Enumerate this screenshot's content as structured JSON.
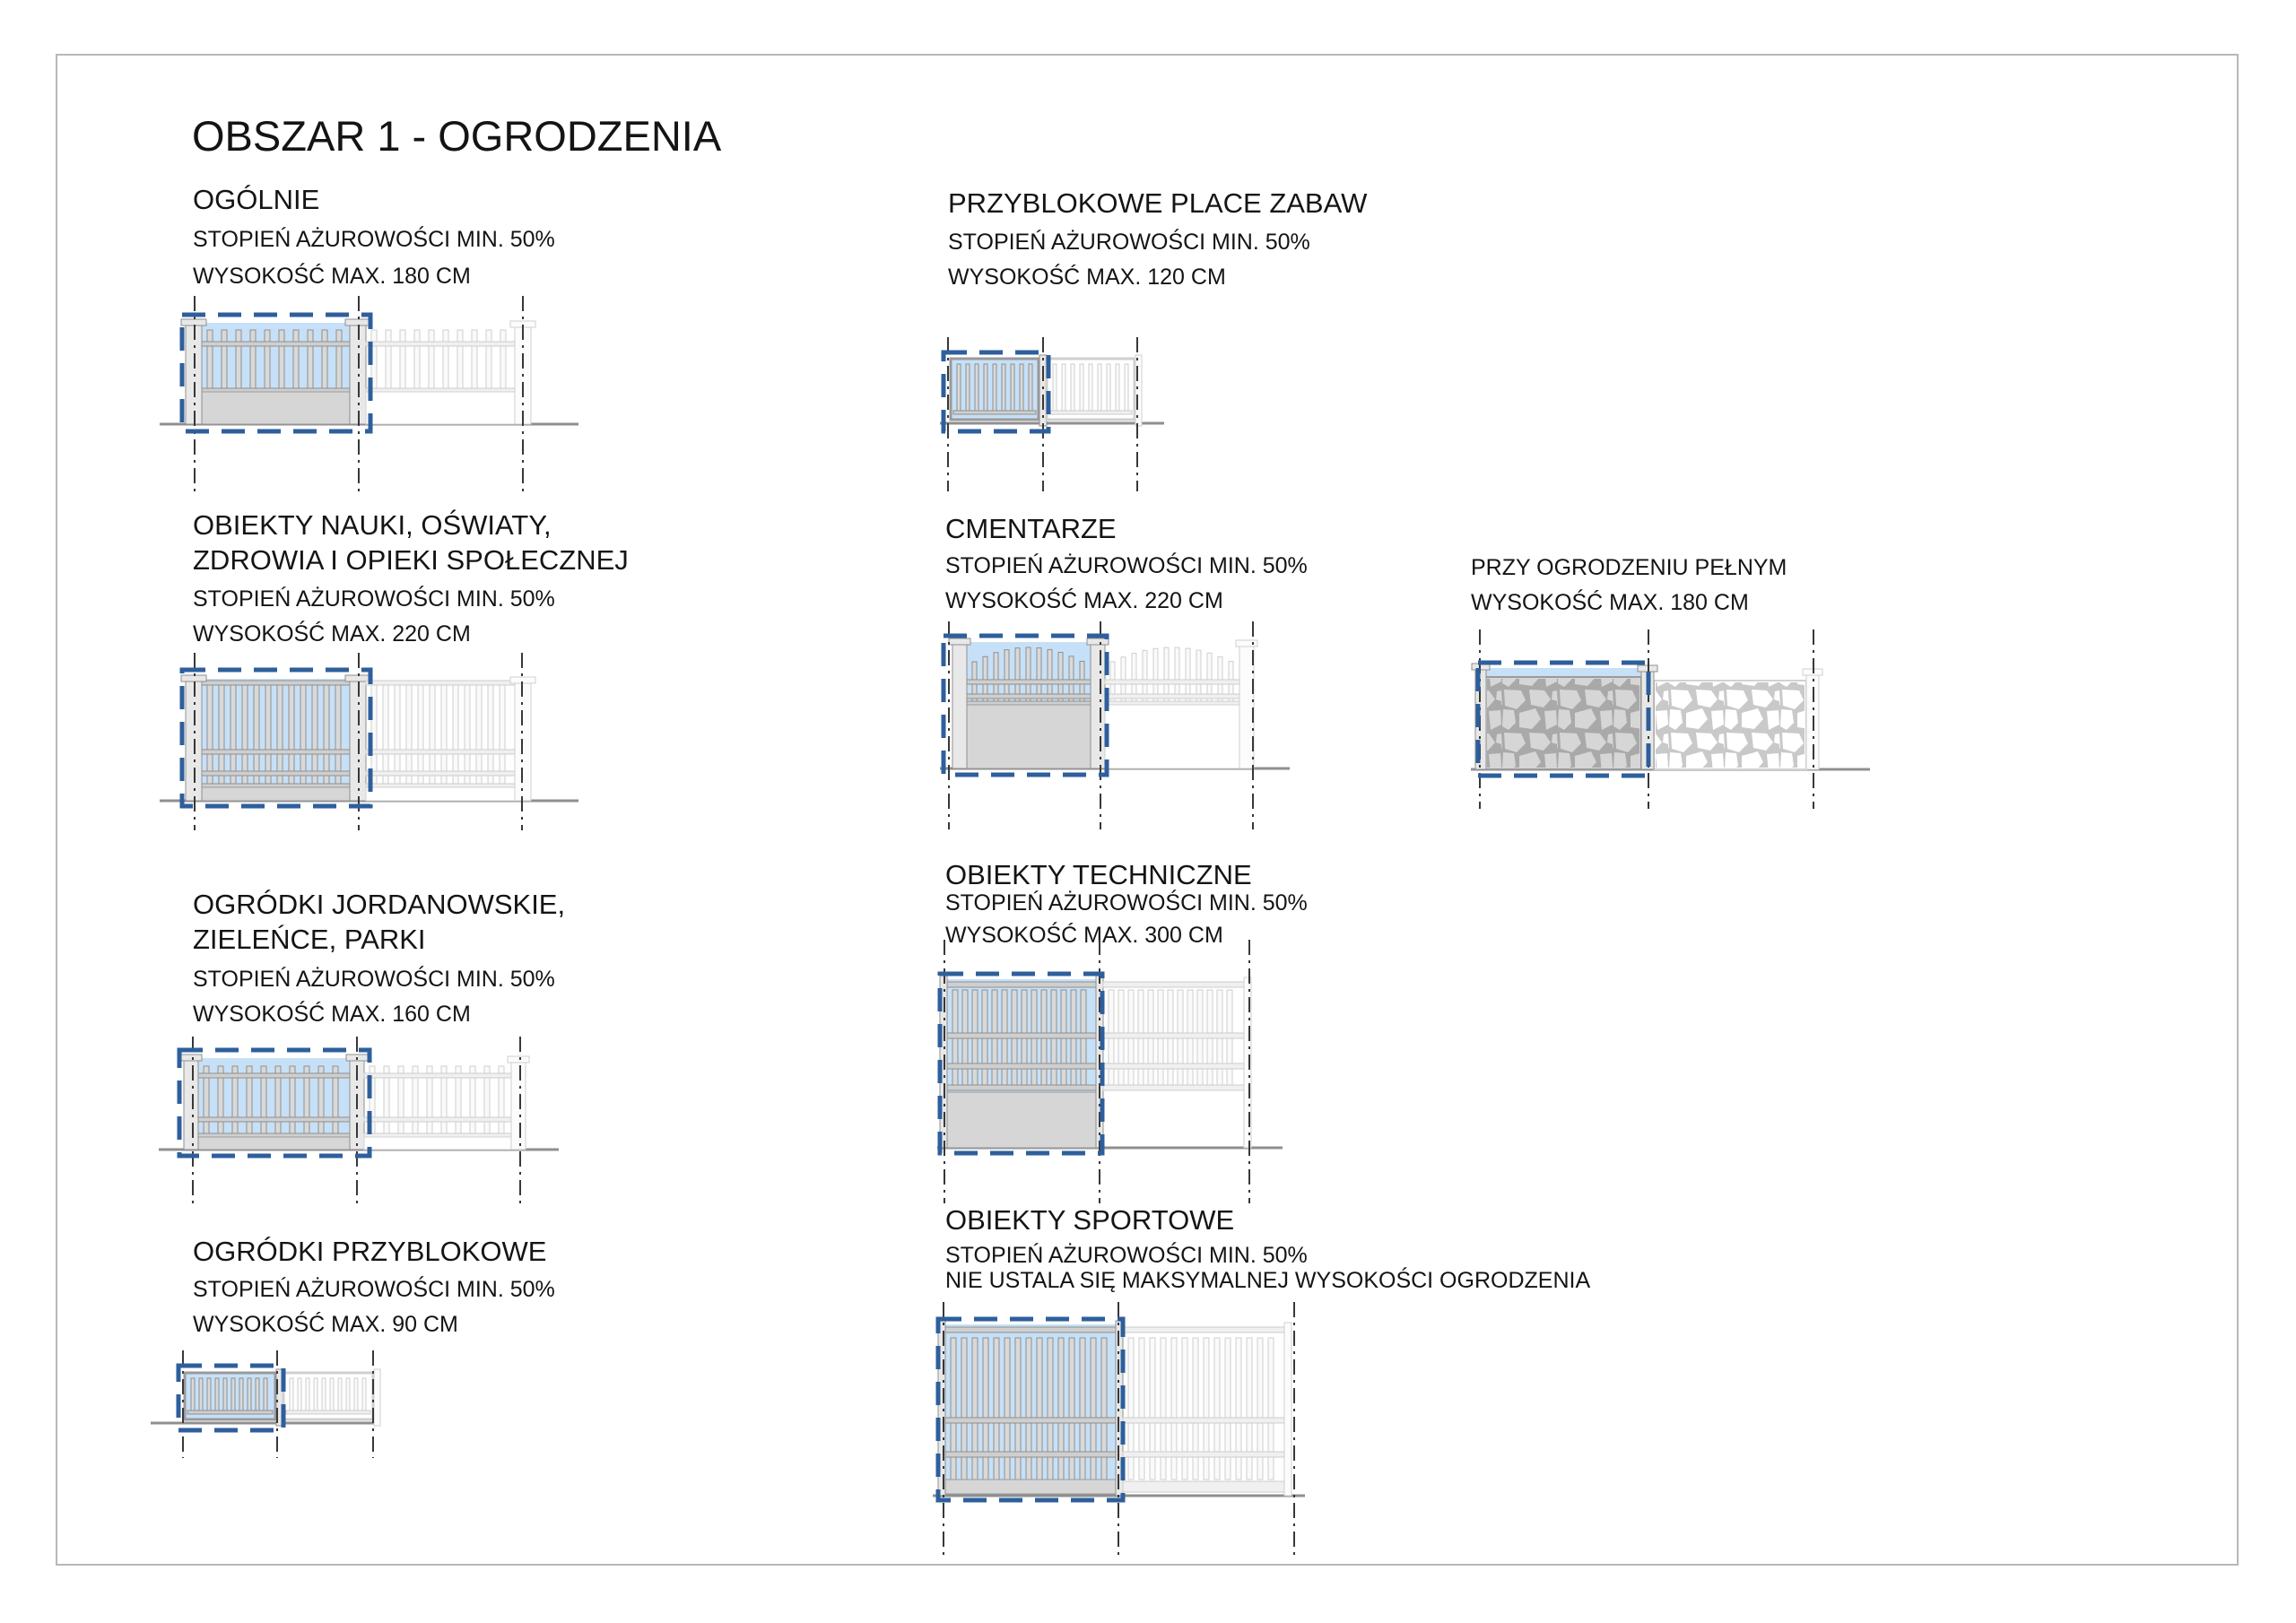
{
  "page": {
    "title": "OBSZAR 1 - OGRODZENIA"
  },
  "colors": {
    "highlight_fill": "#c6e0f7",
    "highlight_border": "#2e5f9c",
    "fence_gray": "#9a9a9a",
    "base_wall": "#d6d6d6",
    "ground_line": "#8f8f8f",
    "centerline": "#383838",
    "frame_border": "#b8b8b8"
  },
  "sections": [
    {
      "id": "ogolnie",
      "title_lines": [
        "OGÓLNIE"
      ],
      "specs": [
        "STOPIEŃ AŻUROWOŚCI MIN. 50%",
        "WYSOKOŚĆ MAX. 180 CM"
      ],
      "diagram": "picket-fence-with-base-180"
    },
    {
      "id": "nauka",
      "title_lines": [
        "OBIEKTY NAUKI, OŚWIATY,",
        "ZDROWIA I OPIEKI SPOŁECZNEJ"
      ],
      "specs": [
        "STOPIEŃ AŻUROWOŚCI MIN. 50%",
        "WYSOKOŚĆ MAX. 220 CM"
      ],
      "diagram": "tall-picket-fence-220"
    },
    {
      "id": "jordanowskie",
      "title_lines": [
        "OGRÓDKI JORDANOWSKIE,",
        "ZIELEŃCE, PARKI"
      ],
      "specs": [
        "STOPIEŃ AŻUROWOŚCI MIN. 50%",
        "WYSOKOŚĆ MAX. 160 CM"
      ],
      "diagram": "picket-fence-160"
    },
    {
      "id": "przyblokowe",
      "title_lines": [
        "OGRÓDKI PRZYBLOKOWE"
      ],
      "specs": [
        "STOPIEŃ AŻUROWOŚCI MIN. 50%",
        "WYSOKOŚĆ MAX. 90 CM"
      ],
      "diagram": "low-panel-fence-90"
    },
    {
      "id": "place-zabaw",
      "title_lines": [
        "PRZYBLOKOWE PLACE ZABAW"
      ],
      "specs": [
        "STOPIEŃ AŻUROWOŚCI MIN. 50%",
        "WYSOKOŚĆ MAX. 120 CM"
      ],
      "diagram": "low-panel-fence-120"
    },
    {
      "id": "cmentarze",
      "title_lines": [
        "CMENTARZE"
      ],
      "specs": [
        "STOPIEŃ AŻUROWOŚCI MIN. 50%",
        "WYSOKOŚĆ MAX. 220 CM"
      ],
      "diagram": "arched-picket-fence-with-wall-220"
    },
    {
      "id": "pelne",
      "title_lines": [],
      "specs": [
        "PRZY OGRODZENIU PEŁNYM",
        "WYSOKOŚĆ MAX. 180 CM"
      ],
      "diagram": "full-stone-wall-180"
    },
    {
      "id": "techniczne",
      "title_lines": [
        "OBIEKTY TECHNICZNE"
      ],
      "specs": [
        "STOPIEŃ AŻUROWOŚCI MIN. 50%",
        "WYSOKOŚĆ MAX. 300 CM"
      ],
      "diagram": "bar-fence-with-base-300"
    },
    {
      "id": "sportowe",
      "title_lines": [
        "OBIEKTY SPORTOWE"
      ],
      "specs": [
        "STOPIEŃ AŻUROWOŚCI MIN. 50%",
        "NIE USTALA SIĘ MAKSYMALNEJ WYSOKOŚCI OGRODZENIA"
      ],
      "diagram": "tall-bar-fence-sport"
    }
  ]
}
